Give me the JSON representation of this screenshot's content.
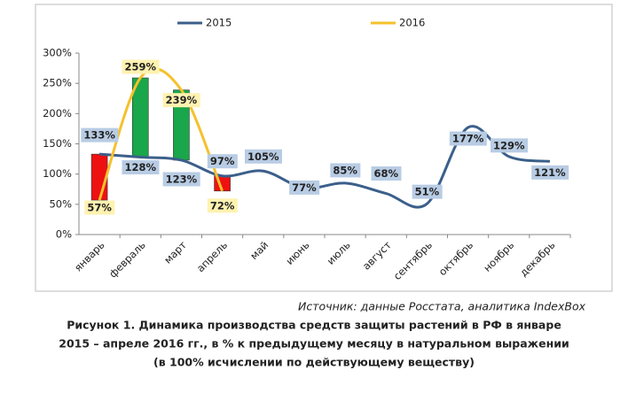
{
  "chart_data": {
    "type": "line",
    "caption": [
      "Рисунок 1. Динамика производства средств защиты растений в РФ в январе",
      "2015 – апреле 2016 гг., в % к предыдущему месяцу в натуральном выражении",
      "(в 100% исчислении по действующему веществу)"
    ],
    "source": "Источник: данные Росстата, аналитика IndexBox",
    "categories": [
      "январь",
      "февраль",
      "март",
      "апрель",
      "май",
      "июнь",
      "июль",
      "август",
      "сентябрь",
      "октябрь",
      "ноябрь",
      "декабрь"
    ],
    "series": [
      {
        "name": "2015",
        "color": "#3b5f8a",
        "label_bg": "#b8cce4",
        "values": [
          133,
          128,
          123,
          97,
          105,
          77,
          85,
          68,
          51,
          177,
          129,
          121
        ],
        "value_labels": [
          "133%",
          "128%",
          "123%",
          "97%",
          "105%",
          "77%",
          "85%",
          "68%",
          "51%",
          "177%",
          "129%",
          "121%"
        ]
      },
      {
        "name": "2016",
        "color": "#f5c12c",
        "label_bg": "#fff2b0",
        "values": [
          57,
          259,
          239,
          72,
          null,
          null,
          null,
          null,
          null,
          null,
          null,
          null
        ],
        "value_labels": [
          "57%",
          "259%",
          "239%",
          "72%",
          null,
          null,
          null,
          null,
          null,
          null,
          null,
          null
        ]
      }
    ],
    "up_down_bars": true,
    "up_color": "#1aa64a",
    "down_color": "#ee1111",
    "smooth": true,
    "legend": "top",
    "ylim": [
      0,
      300
    ],
    "yticks": [
      {
        "value": 0,
        "label": "0%"
      },
      {
        "value": 50,
        "label": "50%"
      },
      {
        "value": 100,
        "label": "100%"
      },
      {
        "value": 150,
        "label": "150%"
      },
      {
        "value": 200,
        "label": "200%"
      },
      {
        "value": 250,
        "label": "250%"
      },
      {
        "value": 300,
        "label": "300%"
      }
    ]
  }
}
